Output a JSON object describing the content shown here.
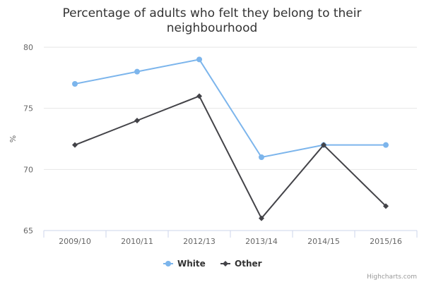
{
  "chart_data": {
    "type": "line",
    "title": "Percentage of adults who felt they belong to their neighbourhood",
    "title_lines": [
      "Percentage of adults who felt they belong to their",
      "neighbourhood"
    ],
    "xlabel": "",
    "ylabel": "%",
    "categories": [
      "2009/10",
      "2010/11",
      "2012/13",
      "2013/14",
      "2014/15",
      "2015/16"
    ],
    "ylim": [
      65,
      80
    ],
    "yticks": [
      65,
      70,
      75,
      80
    ],
    "grid": true,
    "legend_position": "bottom-center",
    "series": [
      {
        "name": "White",
        "values": [
          77,
          78,
          79,
          71,
          72,
          72
        ],
        "color": "#7cb5ec",
        "marker": "circle"
      },
      {
        "name": "Other",
        "values": [
          72,
          74,
          76,
          66,
          72,
          67
        ],
        "color": "#434348",
        "marker": "diamond"
      }
    ]
  },
  "credits": "Highcharts.com"
}
